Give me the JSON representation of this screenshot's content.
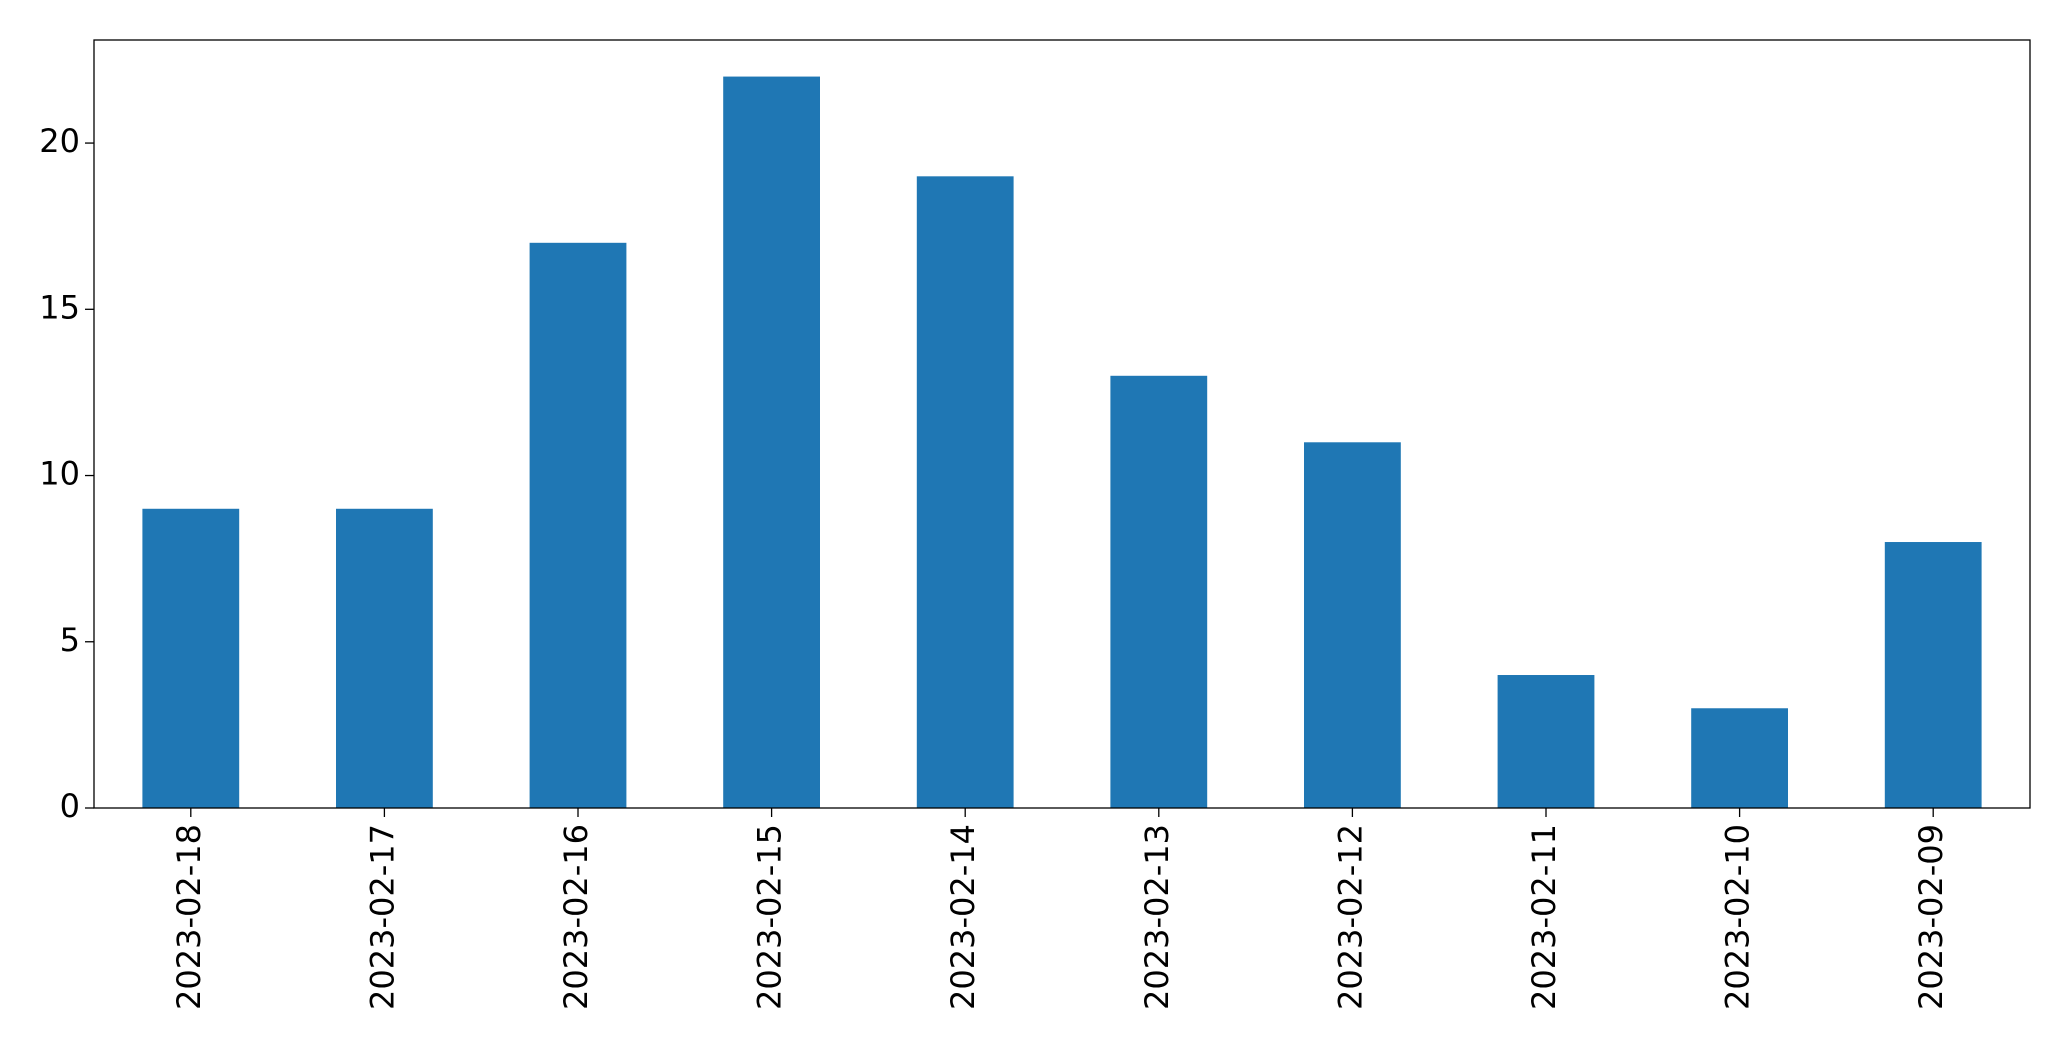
{
  "chart_data": {
    "type": "bar",
    "categories": [
      "2023-02-18",
      "2023-02-17",
      "2023-02-16",
      "2023-02-15",
      "2023-02-14",
      "2023-02-13",
      "2023-02-12",
      "2023-02-11",
      "2023-02-10",
      "2023-02-09"
    ],
    "values": [
      9,
      9,
      17,
      22,
      19,
      13,
      11,
      4,
      3,
      8
    ],
    "color": "#1f77b4",
    "ylim": [
      0,
      23.1
    ],
    "yticks": [
      0,
      5,
      10,
      15,
      20
    ],
    "grid": false
  }
}
